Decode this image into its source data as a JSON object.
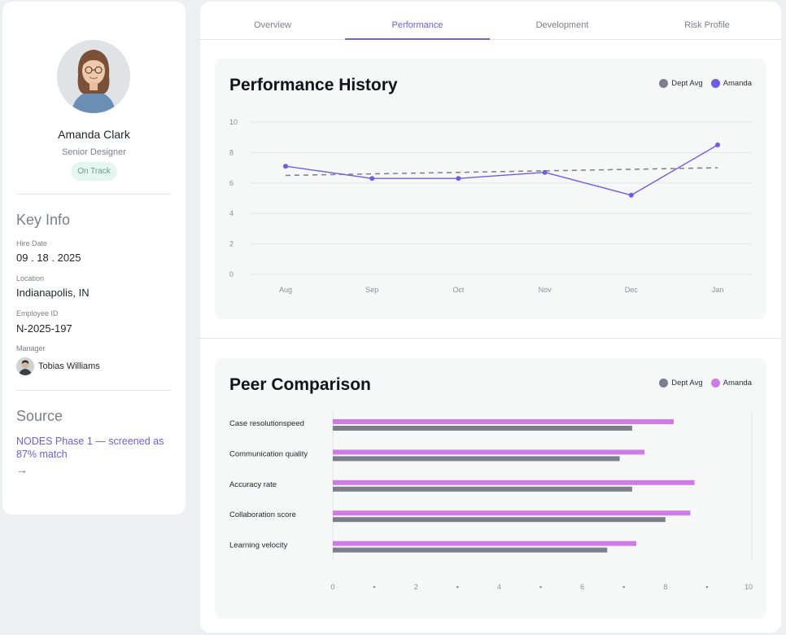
{
  "profile": {
    "name": "Amanda Clark",
    "role": "Senior Designer",
    "status": "On Track"
  },
  "key_info": {
    "heading": "Key Info",
    "hire_date_label": "Hire Date",
    "hire_date": "09 . 18 . 2025",
    "location_label": "Location",
    "location": "Indianapolis, IN",
    "employee_id_label": "Employee ID",
    "employee_id": "N-2025-197",
    "manager_label": "Manager",
    "manager": "Tobias Williams"
  },
  "source": {
    "heading": "Source",
    "link_text": "NODES Phase 1 — screened as 87% match",
    "arrow": "→"
  },
  "tabs": [
    {
      "label": "Overview"
    },
    {
      "label": "Performance"
    },
    {
      "label": "Development"
    },
    {
      "label": "Risk Profile"
    }
  ],
  "active_tab": "Performance",
  "colors": {
    "accent": "#6a5fe0",
    "amanda_line": "#6a5fe0",
    "amanda_bar": "#d07ae8",
    "dept_avg": "#7a7f8a",
    "status_bg": "#e5f5ef",
    "status_text": "#6a9d8a"
  },
  "legend": {
    "dept_avg": "Dept Avg",
    "amanda": "Amanda"
  },
  "chart_data": [
    {
      "type": "line",
      "title": "Performance History",
      "categories": [
        "Aug",
        "Sep",
        "Oct",
        "Nov",
        "Dec",
        "Jan"
      ],
      "ylim": [
        0,
        10
      ],
      "yticks": [
        0,
        2,
        4,
        6,
        8,
        10
      ],
      "grid": true,
      "legend_position": "top-right",
      "series": [
        {
          "name": "Dept Avg",
          "style": "dashed",
          "values": [
            6.5,
            6.6,
            6.7,
            6.8,
            6.9,
            7.0
          ]
        },
        {
          "name": "Amanda",
          "style": "solid-markers",
          "values": [
            7.1,
            6.3,
            6.3,
            6.7,
            5.2,
            8.5
          ]
        }
      ]
    },
    {
      "type": "bar",
      "orientation": "horizontal",
      "title": "Peer Comparison",
      "categories": [
        "Case resolutionspeed",
        "Communication quality",
        "Accuracy rate",
        "Collaboration score",
        "Learning velocity"
      ],
      "xlim": [
        0,
        10
      ],
      "xticks": [
        0,
        2,
        4,
        6,
        8,
        10
      ],
      "legend_position": "top-right",
      "series": [
        {
          "name": "Amanda",
          "values": [
            8.2,
            7.5,
            8.7,
            8.6,
            7.3
          ]
        },
        {
          "name": "Dept Avg",
          "values": [
            7.2,
            6.9,
            7.2,
            8.0,
            6.6
          ]
        }
      ]
    }
  ]
}
